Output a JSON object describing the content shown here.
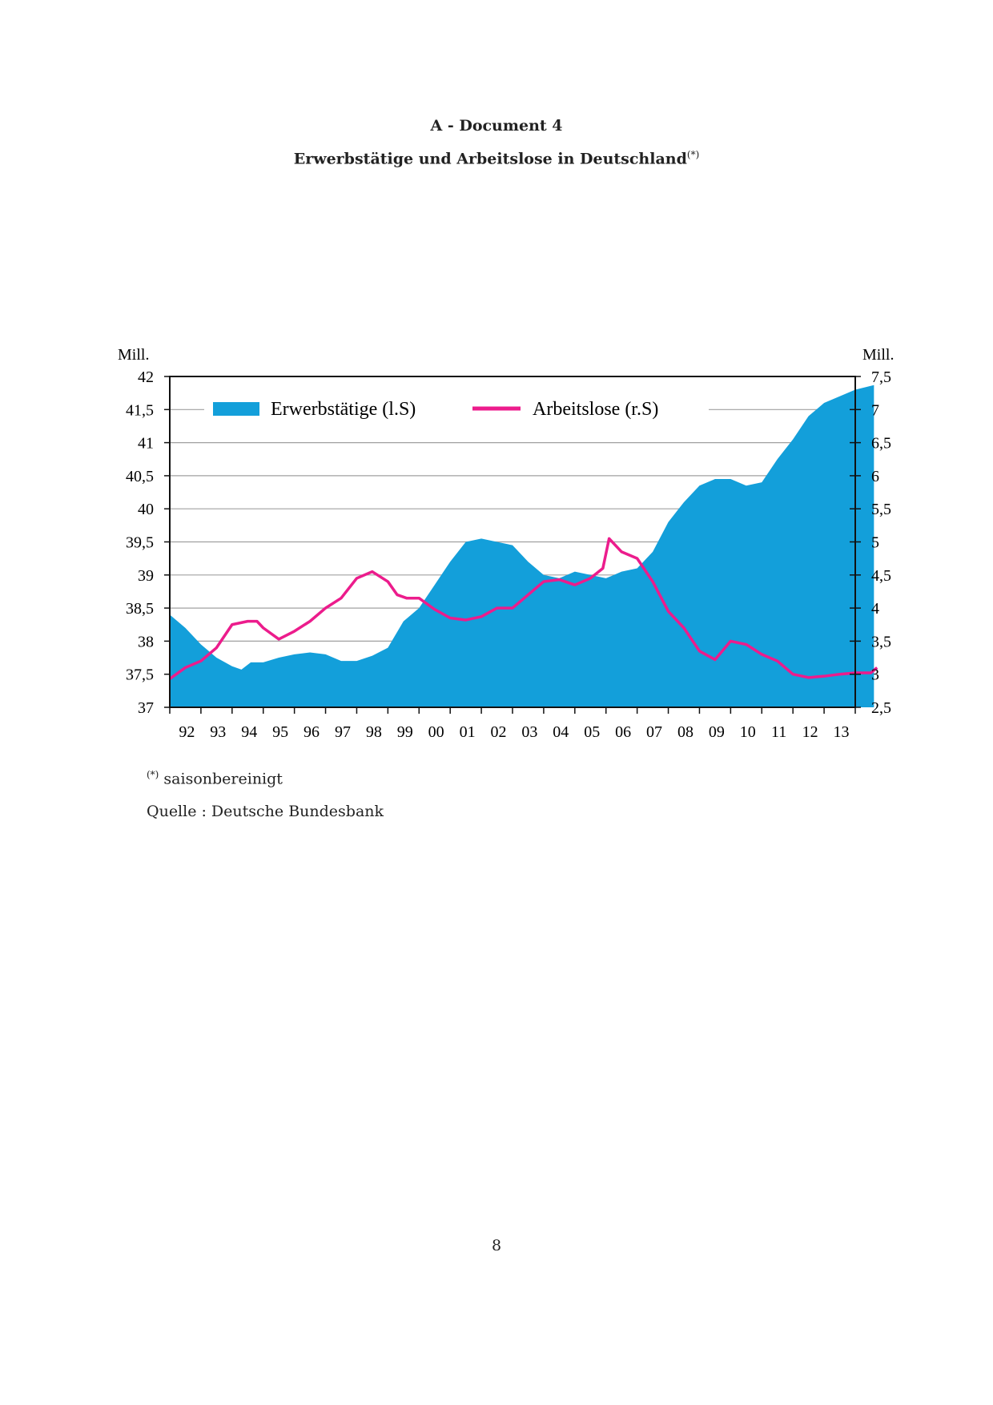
{
  "header": {
    "doc_label": "A - Document 4",
    "title": "Erwerbstätige und Arbeitslose in Deutschland",
    "title_sup": "(*)"
  },
  "footnote": {
    "marker": "(*)",
    "text": "saisonbereinigt"
  },
  "source": "Quelle : Deutsche Bundesbank",
  "page_number": "8",
  "chart_data": {
    "type": "area+line",
    "left_unit": "Mill.",
    "right_unit": "Mill.",
    "left_ylim": [
      37,
      42
    ],
    "right_ylim": [
      2.5,
      7.5
    ],
    "left_ticks": [
      "37",
      "37,5",
      "38",
      "38,5",
      "39",
      "39,5",
      "40",
      "40,5",
      "41",
      "41,5",
      "42"
    ],
    "right_ticks": [
      "2,5",
      "3",
      "3,5",
      "4",
      "4,5",
      "5",
      "5,5",
      "6",
      "6,5",
      "7",
      "7,5"
    ],
    "x_ticks": [
      "92",
      "93",
      "94",
      "95",
      "96",
      "97",
      "98",
      "99",
      "00",
      "01",
      "02",
      "03",
      "04",
      "05",
      "06",
      "07",
      "08",
      "09",
      "10",
      "11",
      "12",
      "13"
    ],
    "xlim": [
      1991,
      2013.9
    ],
    "grid": true,
    "legend_placement": "top",
    "colors": {
      "Erwerbstätige": "#139fda",
      "Arbeitslose": "#ec1c8c"
    },
    "series": [
      {
        "name": "Erwerbstätige (l.S)",
        "axis": "left",
        "kind": "area",
        "x": [
          1991,
          1991.5,
          1992,
          1992.5,
          1993,
          1993.3,
          1993.6,
          1994,
          1994.5,
          1995,
          1995.5,
          1996,
          1996.5,
          1997,
          1997.5,
          1998,
          1998.5,
          1999,
          1999.5,
          2000,
          2000.5,
          2001,
          2001.5,
          2002,
          2002.5,
          2003,
          2003.5,
          2004,
          2004.5,
          2005,
          2005.5,
          2006,
          2006.5,
          2007,
          2007.5,
          2008,
          2008.5,
          2009,
          2009.5,
          2010,
          2010.5,
          2011,
          2011.5,
          2012,
          2012.5,
          2013,
          2013.6
        ],
        "y": [
          38.4,
          38.2,
          37.95,
          37.75,
          37.62,
          37.57,
          37.68,
          37.68,
          37.75,
          37.8,
          37.83,
          37.8,
          37.7,
          37.7,
          37.78,
          37.9,
          38.3,
          38.5,
          38.85,
          39.2,
          39.5,
          39.55,
          39.5,
          39.45,
          39.2,
          39.0,
          38.95,
          39.05,
          39.0,
          38.95,
          39.05,
          39.1,
          39.35,
          39.8,
          40.1,
          40.35,
          40.45,
          40.45,
          40.35,
          40.4,
          40.75,
          41.05,
          41.4,
          41.6,
          41.7,
          41.8,
          41.87
        ]
      },
      {
        "name": "Arbeitslose (r.S)",
        "axis": "right",
        "kind": "line",
        "x": [
          1991,
          1991.5,
          1992,
          1992.5,
          1993,
          1993.5,
          1993.8,
          1994,
          1994.5,
          1995,
          1995.5,
          1996,
          1996.5,
          1997,
          1997.5,
          1998,
          1998.3,
          1998.6,
          1999,
          1999.5,
          2000,
          2000.5,
          2001,
          2001.5,
          2002,
          2002.5,
          2003,
          2003.5,
          2004,
          2004.5,
          2004.9,
          2005.1,
          2005.5,
          2006,
          2006.5,
          2007,
          2007.5,
          2008,
          2008.5,
          2009,
          2009.5,
          2010,
          2010.5,
          2011,
          2011.5,
          2012,
          2012.5,
          2013,
          2013.5,
          2013.7
        ],
        "y": [
          2.93,
          3.1,
          3.2,
          3.4,
          3.75,
          3.8,
          3.8,
          3.7,
          3.53,
          3.65,
          3.8,
          4.0,
          4.15,
          4.45,
          4.55,
          4.4,
          4.2,
          4.15,
          4.15,
          3.98,
          3.85,
          3.82,
          3.87,
          4.0,
          4.0,
          4.2,
          4.4,
          4.43,
          4.35,
          4.45,
          4.6,
          5.05,
          4.85,
          4.75,
          4.4,
          3.95,
          3.7,
          3.35,
          3.22,
          3.5,
          3.45,
          3.3,
          3.2,
          3.0,
          2.95,
          2.97,
          3.0,
          3.02,
          3.02,
          3.1
        ]
      }
    ]
  }
}
